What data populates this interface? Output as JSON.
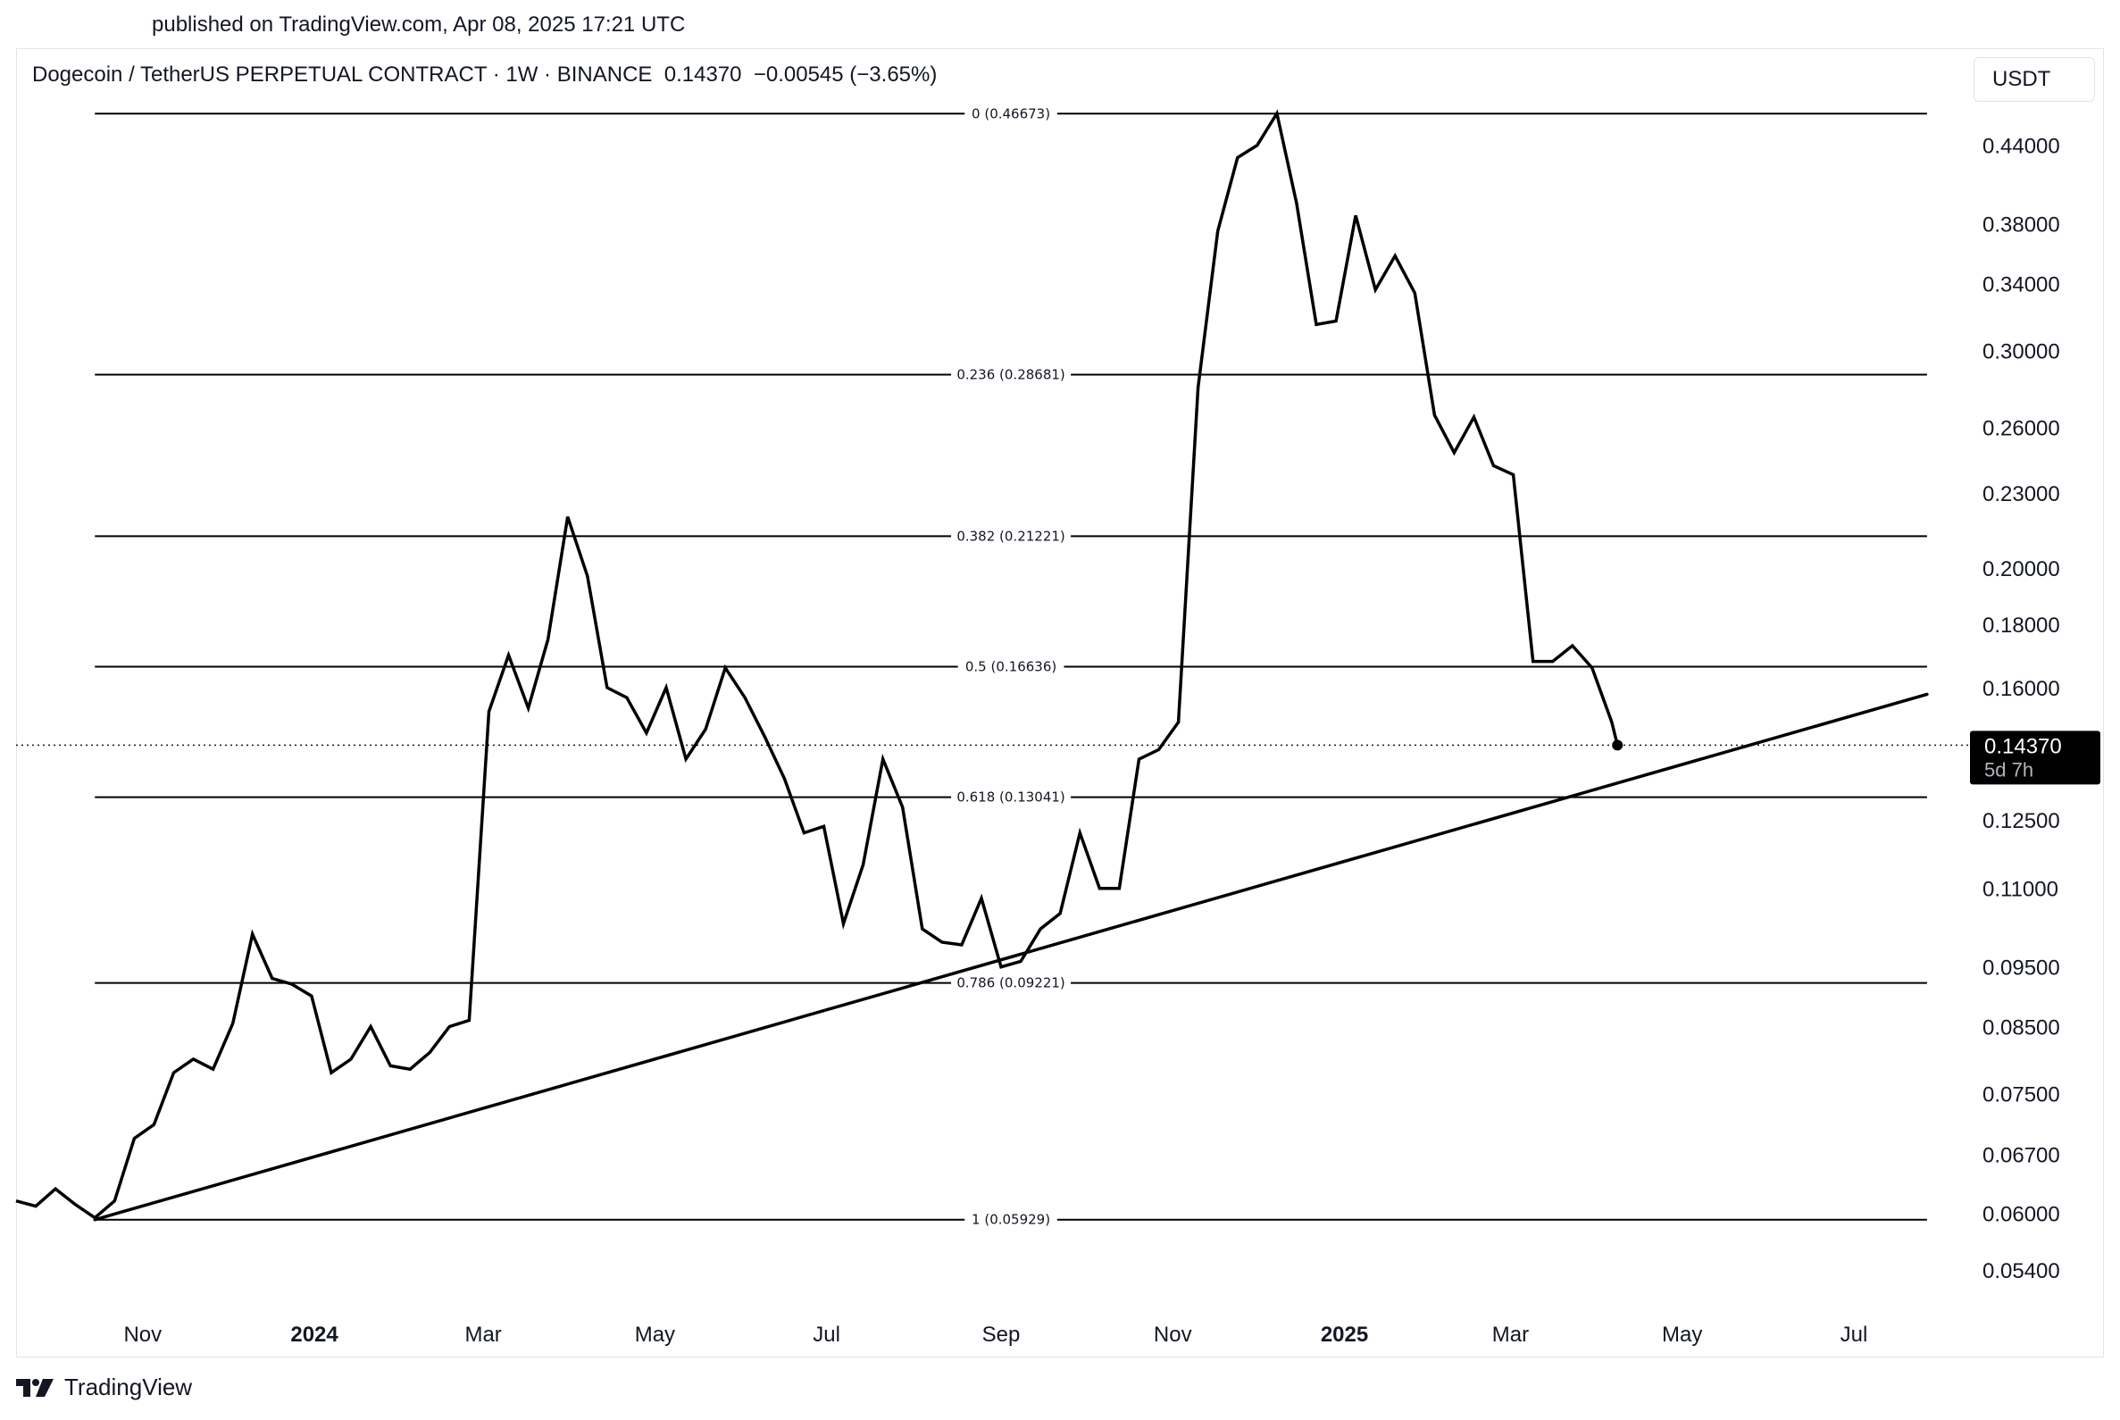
{
  "header": {
    "published": "published on TradingView.com, Apr 08, 2025 17:21 UTC"
  },
  "symbol": {
    "name": "Dogecoin / TetherUS PERPETUAL CONTRACT · 1W · BINANCE",
    "price": "0.14370",
    "change": "−0.00545 (−3.65%)"
  },
  "currency_button": "USDT",
  "price_tag": {
    "price": "0.14370",
    "countdown": "5d 7h"
  },
  "footer": {
    "brand": "TradingView"
  },
  "colors": {
    "line": "#000000",
    "text": "#131722",
    "border": "#e0e3eb",
    "tag_bg": "#000000"
  },
  "chart_data": {
    "type": "line",
    "scale": "log",
    "ylim": [
      0.0505,
      0.505
    ],
    "xlim": [
      "2023-09-17",
      "2025-08-10"
    ],
    "y_ticks": [
      "0.44000",
      "0.38000",
      "0.34000",
      "0.30000",
      "0.26000",
      "0.23000",
      "0.20000",
      "0.18000",
      "0.16000",
      "0.12500",
      "0.11000",
      "0.09500",
      "0.08500",
      "0.07500",
      "0.06700",
      "0.06000",
      "0.05400"
    ],
    "x_ticks": [
      {
        "date": "2023-11-01",
        "label": "Nov",
        "bold": false
      },
      {
        "date": "2024-01-01",
        "label": "2024",
        "bold": true
      },
      {
        "date": "2024-03-01",
        "label": "Mar",
        "bold": false
      },
      {
        "date": "2024-05-01",
        "label": "May",
        "bold": false
      },
      {
        "date": "2024-07-01",
        "label": "Jul",
        "bold": false
      },
      {
        "date": "2024-09-01",
        "label": "Sep",
        "bold": false
      },
      {
        "date": "2024-11-01",
        "label": "Nov",
        "bold": false
      },
      {
        "date": "2025-01-01",
        "label": "2025",
        "bold": true
      },
      {
        "date": "2025-03-01",
        "label": "Mar",
        "bold": false
      },
      {
        "date": "2025-05-01",
        "label": "May",
        "bold": false
      },
      {
        "date": "2025-07-01",
        "label": "Jul",
        "bold": false
      }
    ],
    "fib_levels": [
      {
        "label": "0 (0.46673)",
        "value": 0.46673
      },
      {
        "label": "0.236 (0.28681)",
        "value": 0.28681
      },
      {
        "label": "0.382 (0.21221)",
        "value": 0.21221
      },
      {
        "label": "0.5 (0.16636)",
        "value": 0.16636
      },
      {
        "label": "0.618 (0.13041)",
        "value": 0.13041
      },
      {
        "label": "0.786 (0.09221)",
        "value": 0.09221
      },
      {
        "label": "1 (0.05929)",
        "value": 0.05929
      }
    ],
    "fib_range": [
      "2023-10-15",
      "2025-07-27"
    ],
    "trendline": [
      [
        "2023-10-15",
        0.05929
      ],
      [
        "2025-07-27",
        0.158
      ]
    ],
    "current_price": 0.1437,
    "series": [
      {
        "x": [
          "2023-09-17",
          "2023-09-24",
          "2023-10-01",
          "2023-10-08",
          "2023-10-15",
          "2023-10-22",
          "2023-10-29",
          "2023-11-05",
          "2023-11-12",
          "2023-11-19",
          "2023-11-26",
          "2023-12-03",
          "2023-12-10",
          "2023-12-17",
          "2023-12-24",
          "2023-12-31",
          "2024-01-07",
          "2024-01-14",
          "2024-01-21",
          "2024-01-28",
          "2024-02-04",
          "2024-02-11",
          "2024-02-18",
          "2024-02-25",
          "2024-03-03",
          "2024-03-10",
          "2024-03-17",
          "2024-03-24",
          "2024-03-31",
          "2024-04-07",
          "2024-04-14",
          "2024-04-21",
          "2024-04-28",
          "2024-05-05",
          "2024-05-12",
          "2024-05-19",
          "2024-05-26",
          "2024-06-02",
          "2024-06-09",
          "2024-06-16",
          "2024-06-23",
          "2024-06-30",
          "2024-07-07",
          "2024-07-14",
          "2024-07-21",
          "2024-07-28",
          "2024-08-04",
          "2024-08-11",
          "2024-08-18",
          "2024-08-25",
          "2024-09-01",
          "2024-09-08",
          "2024-09-15",
          "2024-09-22",
          "2024-09-29",
          "2024-10-06",
          "2024-10-13",
          "2024-10-20",
          "2024-10-27",
          "2024-11-03",
          "2024-11-10",
          "2024-11-17",
          "2024-11-24",
          "2024-12-01",
          "2024-12-08",
          "2024-12-15",
          "2024-12-22",
          "2024-12-29",
          "2025-01-05",
          "2025-01-12",
          "2025-01-19",
          "2025-01-26",
          "2025-02-02",
          "2025-02-09",
          "2025-02-16",
          "2025-02-23",
          "2025-03-02",
          "2025-03-09",
          "2025-03-16",
          "2025-03-23",
          "2025-03-30",
          "2025-04-06",
          "2025-04-08"
        ],
        "y": [
          0.0614,
          0.0608,
          0.0628,
          0.061,
          0.0595,
          0.0614,
          0.069,
          0.0708,
          0.078,
          0.08,
          0.0785,
          0.0855,
          0.101,
          0.093,
          0.092,
          0.09,
          0.078,
          0.08,
          0.085,
          0.079,
          0.0785,
          0.081,
          0.085,
          0.086,
          0.153,
          0.17,
          0.154,
          0.175,
          0.22,
          0.197,
          0.16,
          0.157,
          0.147,
          0.16,
          0.14,
          0.148,
          0.166,
          0.157,
          0.146,
          0.135,
          0.122,
          0.1235,
          0.103,
          0.115,
          0.14,
          0.128,
          0.102,
          0.0995,
          0.099,
          0.108,
          0.095,
          0.096,
          0.102,
          0.105,
          0.122,
          0.11,
          0.11,
          0.14,
          0.1425,
          0.15,
          0.28,
          0.375,
          0.43,
          0.44,
          0.467,
          0.395,
          0.315,
          0.317,
          0.386,
          0.336,
          0.358,
          0.334,
          0.266,
          0.248,
          0.265,
          0.242,
          0.238,
          0.168,
          0.168,
          0.173,
          0.166,
          0.15,
          0.1437
        ]
      }
    ]
  }
}
